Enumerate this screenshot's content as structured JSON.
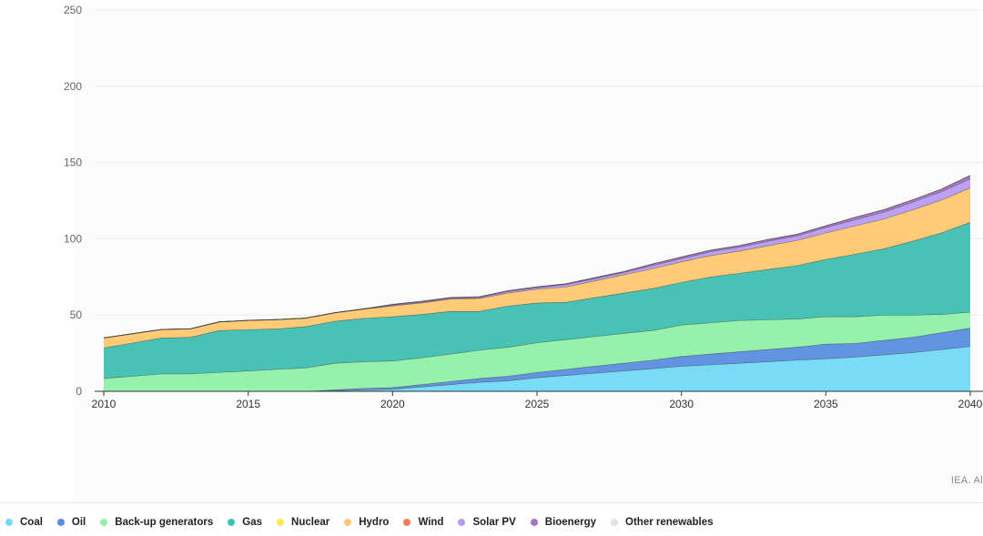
{
  "credit": "IEA. Al",
  "chart_data": {
    "type": "area",
    "stacked": true,
    "title": "",
    "xlabel": "",
    "ylabel": "",
    "ylim": [
      0,
      250
    ],
    "xlim": [
      2010,
      2040
    ],
    "y_ticks": [
      "0",
      "50",
      "100",
      "150",
      "200",
      "250"
    ],
    "x_ticks": [
      "2010",
      "2015",
      "2020",
      "2025",
      "2030",
      "2035",
      "2040"
    ],
    "grid": true,
    "legend_position": "bottom",
    "x": [
      2010,
      2012,
      2013,
      2014,
      2015,
      2016,
      2017,
      2018,
      2019,
      2020,
      2021,
      2022,
      2023,
      2024,
      2025,
      2026,
      2027,
      2028,
      2029,
      2030,
      2031,
      2032,
      2033,
      2034,
      2035,
      2036,
      2037,
      2038,
      2039,
      2040
    ],
    "series": [
      {
        "name": "Coal",
        "color": "#73d9f7",
        "values": [
          0,
          0,
          0,
          0,
          0,
          0,
          0,
          0.5,
          1,
          1.5,
          3,
          4.5,
          6,
          7,
          9,
          10.5,
          12,
          13.5,
          15,
          16.5,
          17.5,
          18.5,
          19.5,
          20.5,
          21.5,
          22.5,
          24,
          25.5,
          27.5,
          29.5
        ]
      },
      {
        "name": "Oil",
        "color": "#5b8ee0",
        "values": [
          0,
          0,
          0,
          0,
          0,
          0,
          0,
          0.5,
          1,
          1,
          1.5,
          2,
          2.5,
          3,
          3.5,
          4,
          4.5,
          5,
          5.5,
          6.5,
          7,
          7.5,
          8,
          8.5,
          9.5,
          9,
          9.5,
          10,
          11,
          12
        ]
      },
      {
        "name": "Back-up generators",
        "color": "#8ff0a8",
        "values": [
          8.5,
          11.5,
          11.5,
          12.5,
          13.5,
          14.5,
          15.5,
          17.5,
          17.5,
          17.5,
          17.5,
          18,
          18.5,
          19,
          19.5,
          19.5,
          19.5,
          19.5,
          19.5,
          20.5,
          20.5,
          20.5,
          19.5,
          18.5,
          18,
          17.5,
          16.5,
          14.5,
          12,
          10.5
        ]
      },
      {
        "name": "Gas",
        "color": "#3fbfb2",
        "values": [
          20,
          23.5,
          24,
          27.5,
          27,
          26.5,
          27,
          27.5,
          28.5,
          29,
          28.5,
          28,
          25.5,
          27,
          26,
          24.5,
          25.5,
          26.5,
          27.5,
          28,
          30,
          31,
          33,
          35,
          37.5,
          41,
          43.5,
          48.5,
          53.5,
          59
        ]
      },
      {
        "name": "Nuclear",
        "color": "#ffe45c",
        "values": [
          0,
          0,
          0,
          0,
          0,
          0,
          0,
          0,
          0,
          0,
          0,
          0,
          0,
          0,
          0,
          0,
          0,
          0,
          0,
          0,
          0,
          0,
          0,
          0,
          0,
          0,
          0,
          0,
          0,
          0
        ]
      },
      {
        "name": "Hydro",
        "color": "#ffc870",
        "values": [
          6.5,
          5.5,
          5.5,
          5.5,
          6,
          6,
          5.5,
          5.5,
          6,
          7,
          7.5,
          8,
          8.5,
          8.5,
          9,
          10,
          11,
          12,
          13,
          13.5,
          14,
          14.5,
          15.5,
          16.5,
          17.5,
          18.5,
          19.5,
          20.5,
          21.5,
          22.5
        ]
      },
      {
        "name": "Wind",
        "color": "#ff7a5c",
        "values": [
          0,
          0,
          0,
          0,
          0,
          0,
          0,
          0,
          0,
          0,
          0,
          0,
          0,
          0,
          0,
          0,
          0,
          0,
          0,
          0,
          0,
          0,
          0,
          0,
          0,
          0,
          0,
          0,
          0,
          0
        ]
      },
      {
        "name": "Solar PV",
        "color": "#b89cf2",
        "values": [
          0,
          0,
          0,
          0,
          0,
          0,
          0,
          0,
          0,
          0.5,
          0.5,
          0.5,
          0.5,
          1,
          1,
          1.5,
          1.5,
          1.5,
          2,
          2,
          2.5,
          2.5,
          3,
          3,
          3.5,
          4,
          4.5,
          5,
          5.5,
          6
        ]
      },
      {
        "name": "Bioenergy",
        "color": "#a876c2",
        "values": [
          0,
          0,
          0,
          0,
          0,
          0,
          0,
          0,
          0,
          0.5,
          0.5,
          0.5,
          0.5,
          0.5,
          0.5,
          0.5,
          0.5,
          0.5,
          1,
          1,
          1,
          1,
          1,
          1,
          1,
          1.5,
          1.5,
          1.5,
          1.5,
          2
        ]
      },
      {
        "name": "Other renewables",
        "color": "#e3e3e3",
        "values": [
          0,
          0,
          0,
          0,
          0,
          0,
          0,
          0,
          0,
          0,
          0,
          0,
          0,
          0,
          0,
          0,
          0,
          0,
          0,
          0,
          0,
          0,
          0,
          0,
          0,
          0,
          0,
          0,
          0,
          0
        ]
      }
    ]
  }
}
